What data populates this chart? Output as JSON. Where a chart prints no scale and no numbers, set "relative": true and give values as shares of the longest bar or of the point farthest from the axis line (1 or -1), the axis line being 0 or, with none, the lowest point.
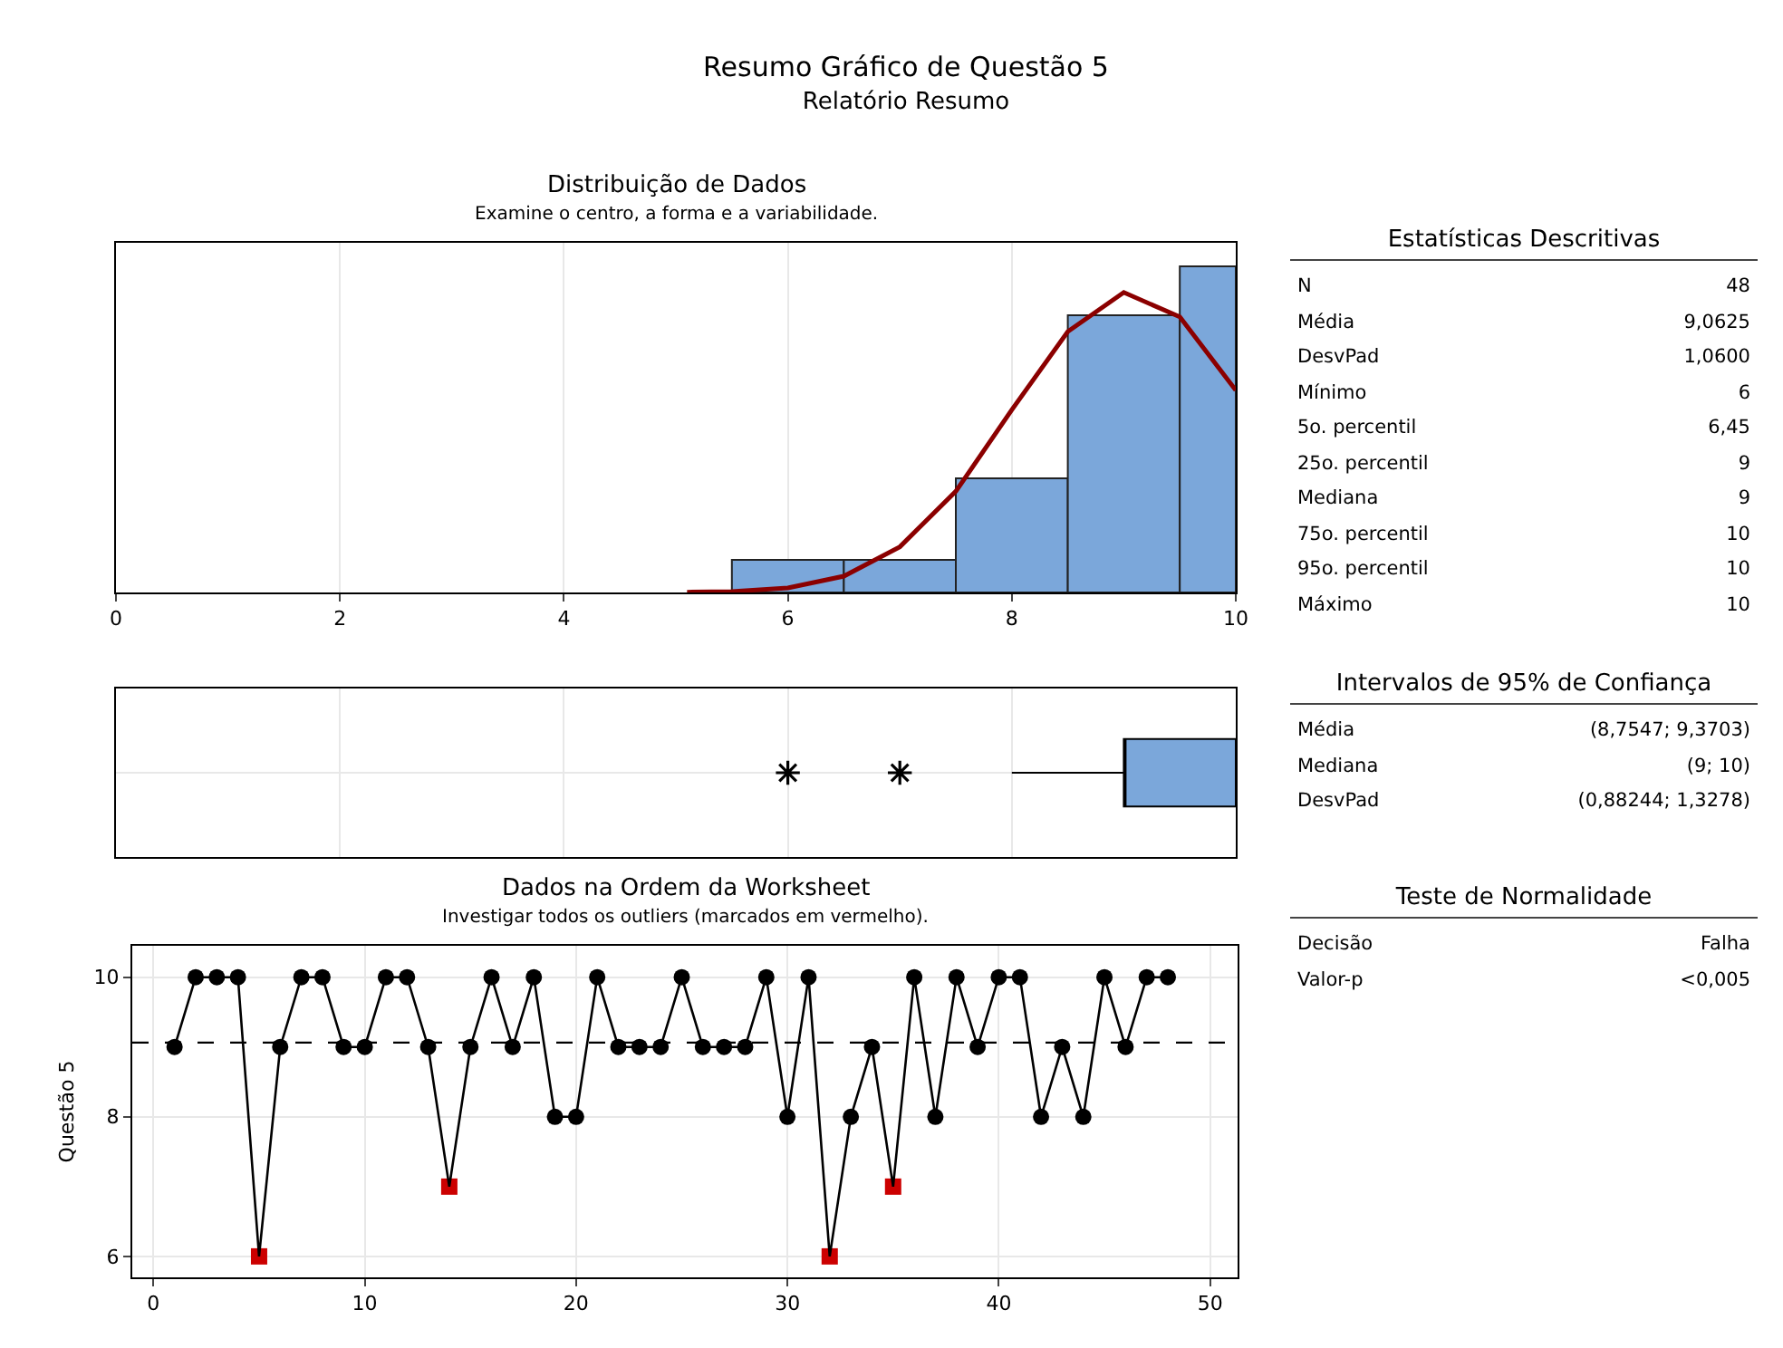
{
  "chart_data": [
    {
      "type": "other",
      "title": "Resumo Gráfico de Questão 5",
      "subtitle": "Relatório Resumo"
    },
    {
      "type": "histogram",
      "title": "Distribuição de Dados",
      "subtitle": "Examine o centro, a forma e a variabilidade.",
      "relative": true,
      "bins": [
        5.5,
        6.5,
        7.5,
        8.5,
        9.5,
        10
      ],
      "values": [
        0.1,
        0.1,
        0.35,
        0.85,
        1
      ],
      "color": "#7ba7da",
      "xlim": [
        0,
        10
      ],
      "xticks": [
        0,
        2,
        4,
        6,
        8,
        10
      ],
      "grid": "x",
      "series": [
        {
          "type": "line",
          "color": "#8b0000",
          "x": [
            5.1,
            5.5,
            6,
            6.5,
            7,
            7.5,
            8,
            8.5,
            9,
            9.5,
            10
          ],
          "values": [
            0.001,
            0.003,
            0.014,
            0.05,
            0.14,
            0.31,
            0.56,
            0.8,
            0.92,
            0.845,
            0.62
          ]
        }
      ]
    },
    {
      "type": "other",
      "title": "Estatísticas Descritivas",
      "categories": [
        "N",
        "Média",
        "DesvPad",
        "Mínimo",
        "5o. percentil",
        "25o. percentil",
        "Mediana",
        "75o. percentil",
        "95o. percentil",
        "Máximo"
      ],
      "value_labels": [
        "48",
        "9,0625",
        "1,0600",
        "6",
        "6,45",
        "9",
        "9",
        "10",
        "10",
        "10"
      ]
    },
    {
      "type": "box",
      "orientation": "horizontal",
      "categories": [
        null
      ],
      "color": "#7ba7da",
      "xlim": [
        0,
        10
      ],
      "xticks": [
        0,
        2,
        4,
        6,
        8,
        10
      ],
      "tick_labels": false,
      "grid": "x",
      "boxes": [
        {
          "low": 8,
          "q1": 9,
          "median": 9,
          "q3": 10,
          "high": 10,
          "outliers": [
            6,
            7
          ]
        }
      ]
    },
    {
      "type": "other",
      "title": "Intervalos de 95% de Confiança",
      "categories": [
        "Média",
        "Mediana",
        "DesvPad"
      ],
      "value_labels": [
        "(8,7547; 9,3703)",
        "(9; 10)",
        "(0,88244; 1,3278)"
      ]
    },
    {
      "type": "line",
      "title": "Dados na Ordem da Worksheet",
      "subtitle": "Investigar todos os outliers (marcados em vermelho).",
      "ylabel": "Questão 5",
      "xlim": [
        -1,
        51.3
      ],
      "xticks": [
        0,
        10,
        20,
        30,
        40,
        50
      ],
      "ylim": [
        5.7,
        10.45
      ],
      "yticks": [
        6,
        8,
        10
      ],
      "grid": true,
      "ref_lines": [
        {
          "axis": "y",
          "value": 9.0625,
          "color": "#000000",
          "line_style": "dashed"
        }
      ],
      "series": [
        {
          "type": "line",
          "marker": "none",
          "line_style": "solid",
          "color": "#000000",
          "x": [
            1,
            2,
            3,
            4,
            5,
            6,
            7,
            8,
            9,
            10,
            11,
            12,
            13,
            14,
            15,
            16,
            17,
            18,
            19,
            20,
            21,
            22,
            23,
            24,
            25,
            26,
            27,
            28,
            29,
            30,
            31,
            32,
            33,
            34,
            35,
            36,
            37,
            38,
            39,
            40,
            41,
            42,
            43,
            44,
            45,
            46,
            47,
            48
          ],
          "values": [
            9,
            10,
            10,
            10,
            6,
            9,
            10,
            10,
            9,
            9,
            10,
            10,
            9,
            7,
            9,
            10,
            9,
            10,
            8,
            8,
            10,
            9,
            9,
            9,
            10,
            9,
            9,
            9,
            10,
            8,
            10,
            6,
            8,
            9,
            7,
            10,
            8,
            10,
            9,
            10,
            10,
            8,
            9,
            8,
            10,
            9,
            10,
            10
          ]
        },
        {
          "type": "scatter",
          "marker": "circle",
          "color": "#000000",
          "x": [
            1,
            2,
            3,
            4,
            6,
            7,
            8,
            9,
            10,
            11,
            12,
            13,
            15,
            16,
            17,
            18,
            19,
            20,
            21,
            22,
            23,
            24,
            25,
            26,
            27,
            28,
            29,
            30,
            31,
            33,
            34,
            36,
            37,
            38,
            39,
            40,
            41,
            42,
            43,
            44,
            45,
            46,
            47,
            48
          ],
          "values": [
            9,
            10,
            10,
            10,
            9,
            10,
            10,
            9,
            9,
            10,
            10,
            9,
            9,
            10,
            9,
            10,
            8,
            8,
            10,
            9,
            9,
            9,
            10,
            9,
            9,
            9,
            10,
            8,
            10,
            8,
            9,
            10,
            8,
            10,
            9,
            10,
            10,
            8,
            9,
            8,
            10,
            9,
            10,
            10
          ]
        },
        {
          "type": "scatter",
          "marker": "square",
          "color": "#cc0000",
          "x": [
            5,
            14,
            32,
            35
          ],
          "values": [
            6,
            7,
            6,
            7
          ]
        }
      ]
    },
    {
      "type": "other",
      "title": "Teste de Normalidade",
      "categories": [
        "Decisão",
        "Valor-p"
      ],
      "value_labels": [
        "Falha",
        "<0,005"
      ]
    }
  ]
}
